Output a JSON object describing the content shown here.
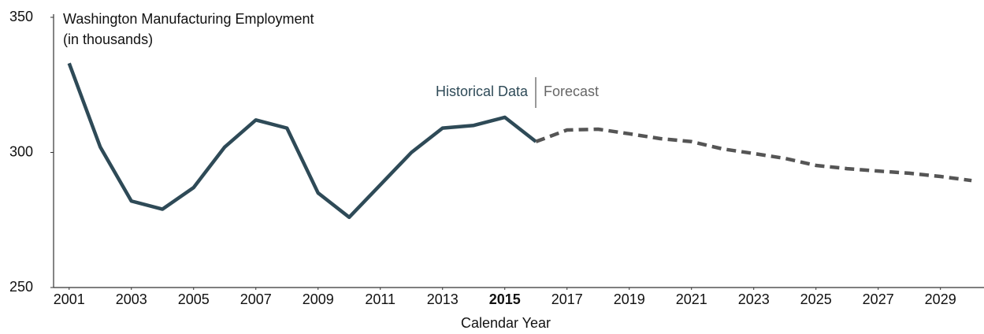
{
  "chart_data": {
    "type": "line",
    "title": "Washington Manufacturing Employment",
    "subtitle": "(in thousands)",
    "x_label": "Calendar Year",
    "annotations": [
      "Historical Data",
      "Forecast"
    ],
    "x": [
      2001,
      2002,
      2003,
      2004,
      2005,
      2006,
      2007,
      2008,
      2009,
      2010,
      2011,
      2012,
      2013,
      2014,
      2015,
      2016,
      2017,
      2018,
      2019,
      2020,
      2021,
      2022,
      2023,
      2024,
      2025,
      2026,
      2027,
      2028,
      2029,
      2030
    ],
    "series": [
      {
        "name": "Historical Data",
        "color": "#2e4a57",
        "dashed": false,
        "values": [
          333,
          302,
          282,
          279,
          287,
          302,
          312,
          309,
          285,
          276,
          288,
          300,
          309,
          310,
          313,
          304,
          null,
          null,
          null,
          null,
          null,
          null,
          null,
          null,
          null,
          null,
          null,
          null,
          null,
          null
        ]
      },
      {
        "name": "Forecast",
        "color": "#555555",
        "dashed": true,
        "values": [
          null,
          null,
          null,
          null,
          null,
          null,
          null,
          null,
          null,
          null,
          null,
          null,
          null,
          null,
          null,
          304,
          308.3,
          308.6,
          306.9,
          305.1,
          304,
          301.3,
          299.6,
          297.8,
          295.2,
          294,
          293.1,
          292.3,
          291.1,
          289.6
        ]
      }
    ],
    "xlim": [
      2000.5,
      2030.4
    ],
    "xticks": [
      2001,
      2003,
      2005,
      2007,
      2009,
      2011,
      2013,
      2015,
      2017,
      2019,
      2021,
      2023,
      2025,
      2027,
      2029
    ],
    "bold_xtick": 2015,
    "ylim": [
      250,
      350
    ],
    "yticks": [
      250,
      300,
      350
    ],
    "grid": false
  }
}
